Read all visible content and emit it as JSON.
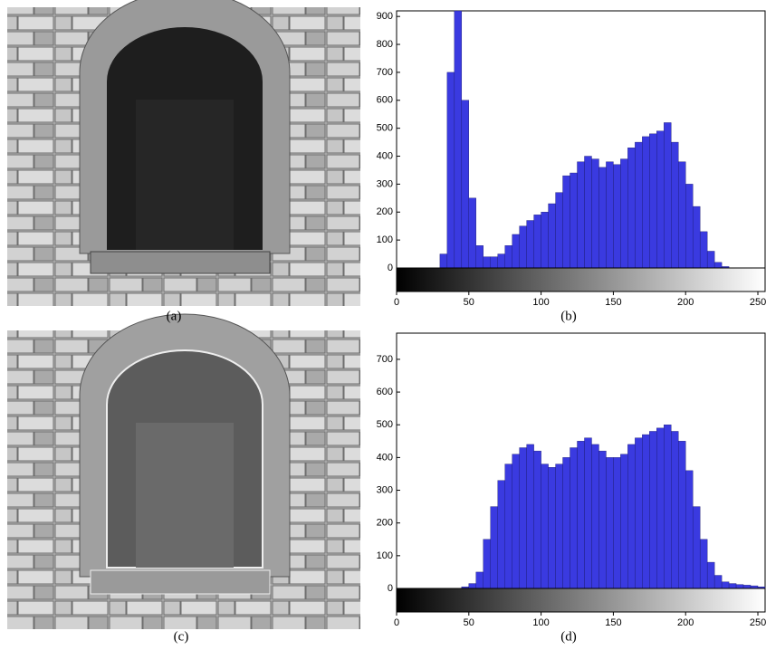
{
  "captions": [
    "(a)",
    "(b)",
    "(c)",
    "(d)"
  ],
  "chart_data": [
    {
      "type": "histogram",
      "color": "#3a3ae0",
      "bins": [
        0,
        5,
        10,
        15,
        20,
        25,
        30,
        35,
        40,
        45,
        50,
        55,
        60,
        65,
        70,
        75,
        80,
        85,
        90,
        95,
        100,
        105,
        110,
        115,
        120,
        125,
        130,
        135,
        140,
        145,
        150,
        155,
        160,
        165,
        170,
        175,
        180,
        185,
        190,
        195,
        200,
        205,
        210,
        215,
        220,
        225,
        230,
        235,
        240,
        245,
        250,
        255
      ],
      "values": [
        0,
        0,
        0,
        0,
        0,
        0,
        50,
        700,
        920,
        600,
        250,
        80,
        40,
        40,
        50,
        80,
        120,
        150,
        170,
        190,
        200,
        230,
        270,
        330,
        340,
        380,
        400,
        390,
        360,
        380,
        370,
        390,
        430,
        450,
        470,
        480,
        490,
        520,
        450,
        380,
        300,
        220,
        130,
        60,
        20,
        5,
        0,
        0,
        0,
        0,
        0
      ],
      "xlim": [
        0,
        255
      ],
      "xticks": [
        0,
        50,
        100,
        150,
        200,
        250
      ],
      "ylim": [
        0,
        920
      ],
      "yticks": [
        0,
        100,
        200,
        300,
        400,
        500,
        600,
        700,
        800,
        900
      ]
    },
    {
      "type": "histogram",
      "color": "#3a3ae0",
      "bins": [
        0,
        5,
        10,
        15,
        20,
        25,
        30,
        35,
        40,
        45,
        50,
        55,
        60,
        65,
        70,
        75,
        80,
        85,
        90,
        95,
        100,
        105,
        110,
        115,
        120,
        125,
        130,
        135,
        140,
        145,
        150,
        155,
        160,
        165,
        170,
        175,
        180,
        185,
        190,
        195,
        200,
        205,
        210,
        215,
        220,
        225,
        230,
        235,
        240,
        245,
        250,
        255
      ],
      "values": [
        0,
        0,
        0,
        0,
        0,
        0,
        0,
        0,
        0,
        5,
        15,
        50,
        150,
        250,
        330,
        380,
        410,
        430,
        440,
        420,
        380,
        370,
        380,
        400,
        430,
        450,
        460,
        440,
        420,
        400,
        400,
        410,
        440,
        460,
        470,
        480,
        490,
        500,
        480,
        450,
        360,
        250,
        150,
        80,
        40,
        20,
        15,
        12,
        10,
        8,
        5
      ],
      "xlim": [
        0,
        255
      ],
      "xticks": [
        0,
        50,
        100,
        150,
        200,
        250
      ],
      "ylim": [
        0,
        780
      ],
      "yticks": [
        0,
        100,
        200,
        300,
        400,
        500,
        600,
        700
      ]
    }
  ]
}
